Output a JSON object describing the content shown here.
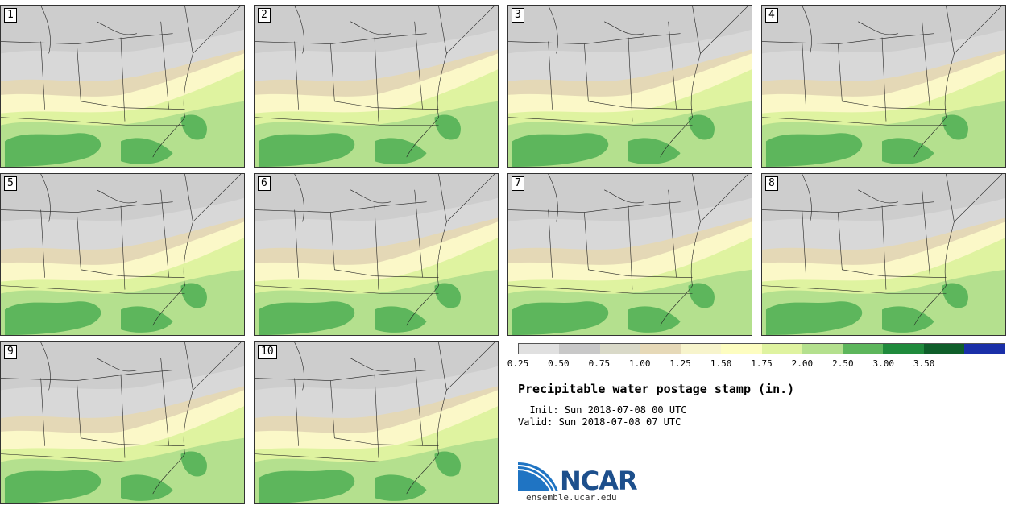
{
  "panels": [
    "1",
    "2",
    "3",
    "4",
    "5",
    "6",
    "7",
    "8",
    "9",
    "10"
  ],
  "colorbar": {
    "colors": [
      "#e0e0e0",
      "#c8c8c8",
      "#d9d9c8",
      "#e6d9b8",
      "#f7f4cc",
      "#fdfdc0",
      "#dff3a0",
      "#b4e08e",
      "#5db65c",
      "#1f8a3c",
      "#0f5e2a",
      "#1a2fa8"
    ],
    "ticks": [
      "0.25",
      "0.50",
      "0.75",
      "1.00",
      "1.25",
      "1.50",
      "1.75",
      "2.00",
      "2.50",
      "3.00",
      "3.50"
    ]
  },
  "title": "Precipitable water postage stamp (in.)",
  "init_label": "Init:",
  "init_value": "Sun 2018-07-08 00 UTC",
  "valid_label": "Valid:",
  "valid_value": "Sun 2018-07-08 07 UTC",
  "logo": {
    "word": "NCAR",
    "url": "ensemble.ucar.edu"
  }
}
